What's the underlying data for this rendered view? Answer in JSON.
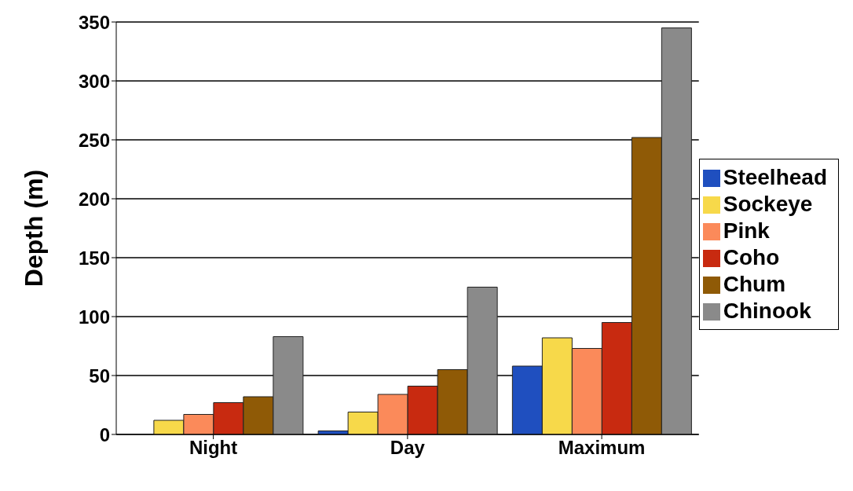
{
  "chart_data": {
    "type": "bar",
    "ylabel": "Depth (m)",
    "categories": [
      "Night",
      "Day",
      "Maximum"
    ],
    "series": [
      {
        "name": "Steelhead",
        "color": "#1f4fbf",
        "values": [
          null,
          3,
          58
        ]
      },
      {
        "name": "Sockeye",
        "color": "#f7d94a",
        "values": [
          12,
          19,
          82
        ]
      },
      {
        "name": "Pink",
        "color": "#fb8a5a",
        "values": [
          17,
          34,
          73
        ]
      },
      {
        "name": "Coho",
        "color": "#c82a10",
        "values": [
          27,
          41,
          95
        ]
      },
      {
        "name": "Chum",
        "color": "#8f5a06",
        "values": [
          32,
          55,
          252
        ]
      },
      {
        "name": "Chinook",
        "color": "#8a8a8a",
        "values": [
          83,
          125,
          345
        ]
      }
    ],
    "ylim": [
      0,
      350
    ],
    "yticks": [
      0,
      50,
      100,
      150,
      200,
      250,
      300,
      350
    ],
    "grid": "y",
    "legend": "right"
  }
}
